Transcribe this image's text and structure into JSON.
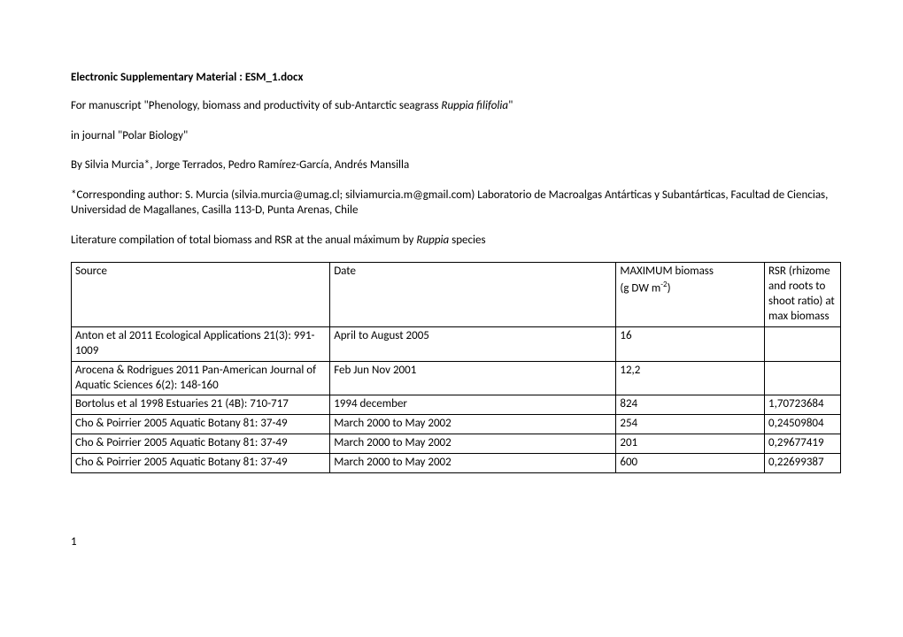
{
  "title": "Electronic Supplementary Material : ESM_1.docx",
  "manuscript_prefix": "For manuscript \"Phenology, biomass and productivity of sub-Antarctic seagrass ",
  "manuscript_species": "Ruppia filifolia",
  "manuscript_suffix": "\"",
  "journal_line": "in journal \"Polar Biology\"",
  "authors_line": "By Silvia Murcia*, Jorge Terrados, Pedro Ramírez-García, Andrés Mansilla",
  "corresponding": "*Corresponding author: S. Murcia (silvia.murcia@umag.cl; silviamurcia.m@gmail.com) Laboratorio de Macroalgas Antárticas y Subantárticas, Facultad de Ciencias, Universidad de Magallanes, Casilla 113-D, Punta Arenas, Chile",
  "compilation_prefix": "Literature compilation of total biomass and RSR at the anual máximum by ",
  "compilation_species": "Ruppia",
  "compilation_suffix": " species",
  "headers": {
    "source": "Source",
    "date": "Date",
    "biomass_label": "MAXIMUM biomass",
    "biomass_unit_prefix": "(g DW m",
    "biomass_unit_sup": "-2",
    "biomass_unit_suffix": ")",
    "rsr": "RSR (rhizome and roots to shoot ratio) at max biomass"
  },
  "rows": [
    {
      "source": "Anton et al 2011 Ecological Applications 21(3): 991-1009",
      "date": "April to August 2005",
      "biomass": "16",
      "rsr": ""
    },
    {
      "source": "Arocena & Rodrigues 2011 Pan-American Journal of Aquatic Sciences 6(2): 148-160",
      "date": "Feb Jun Nov 2001",
      "biomass": "12,2",
      "rsr": ""
    },
    {
      "source": "Bortolus et al 1998 Estuaries 21 (4B): 710-717",
      "date": "1994 december",
      "biomass": "824",
      "rsr": "1,70723684"
    },
    {
      "source": "Cho & Poirrier 2005 Aquatic Botany 81: 37-49",
      "date": "March 2000 to May 2002",
      "biomass": "254",
      "rsr": "0,24509804"
    },
    {
      "source": "Cho & Poirrier 2005 Aquatic Botany 81: 37-49",
      "date": "March 2000 to May 2002",
      "biomass": "201",
      "rsr": "0,29677419"
    },
    {
      "source": "Cho & Poirrier 2005 Aquatic Botany 81: 37-49",
      "date": "March 2000 to May 2002",
      "biomass": "600",
      "rsr": "0,22699387"
    }
  ],
  "page_number": "1"
}
